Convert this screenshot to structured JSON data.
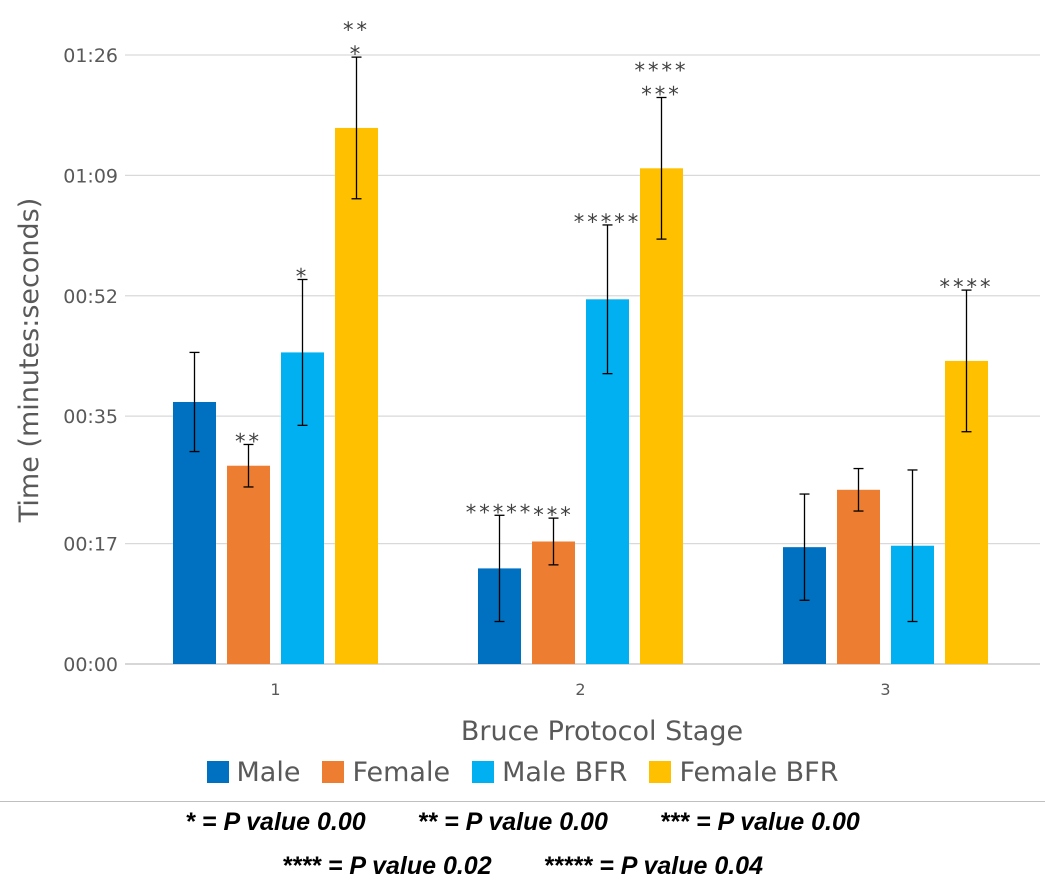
{
  "chart_data": {
    "type": "bar",
    "categories": [
      "1",
      "2",
      "3"
    ],
    "xlabel": "Bruce Protocol Stage",
    "ylabel": "Time (minutes:seconds)",
    "y_unit": "seconds",
    "ylim": [
      0,
      86
    ],
    "yticks": [
      0,
      17,
      35,
      52,
      69,
      86
    ],
    "ytick_labels": [
      "00:00",
      "00:17",
      "00:35",
      "00:52",
      "01:09",
      "01:26"
    ],
    "grid": true,
    "legend_position": "bottom",
    "series": [
      {
        "name": "Male",
        "color": "#0070C0",
        "values": [
          37,
          13.5,
          16.5
        ],
        "error": [
          7,
          7.5,
          7.5
        ],
        "annotations": [
          "",
          "*****",
          ""
        ]
      },
      {
        "name": "Female",
        "color": "#ED7D31",
        "values": [
          28,
          17.3,
          24.6
        ],
        "error": [
          3,
          3.3,
          3
        ],
        "annotations": [
          "**",
          "***",
          ""
        ]
      },
      {
        "name": "Male BFR",
        "color": "#00B0F0",
        "values": [
          44,
          51.5,
          16.7
        ],
        "error": [
          10.3,
          10.5,
          10.7
        ],
        "annotations": [
          "*",
          "*****",
          ""
        ]
      },
      {
        "name": "Female BFR",
        "color": "#FFC000",
        "values": [
          75.7,
          70,
          42.8
        ],
        "error": [
          10,
          10,
          10
        ],
        "annotations": [
          "**\n*",
          "****\n***",
          "****"
        ]
      }
    ],
    "footnotes": [
      [
        "* = P value 0.00",
        "** = P value 0.00",
        "*** = P value 0.00"
      ],
      [
        "**** = P value 0.02",
        "***** = P value 0.04"
      ]
    ]
  }
}
